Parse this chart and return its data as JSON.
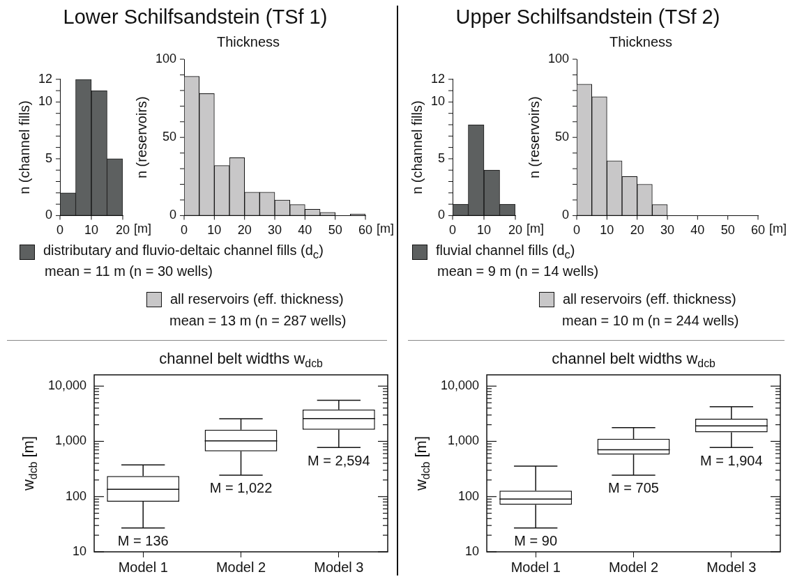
{
  "chart_data": [
    {
      "type": "histogram",
      "title": "Lower Schilfsandstein (TSf 1)",
      "ylabel": "n (channel fills)",
      "xlabel": "[m]",
      "bins": [
        0,
        5,
        10,
        15,
        20
      ],
      "series": [
        {
          "name": "distributary and fluvio-deltaic channel fills (d$_{c}$)",
          "color": "#5d6060",
          "values": [
            2,
            12,
            11,
            5
          ]
        }
      ],
      "xlim": [
        0,
        20
      ],
      "xticks": [
        0,
        10,
        20
      ],
      "ylim": [
        0,
        12
      ],
      "yticks": [
        0,
        {
          "value": 1,
          "label": null
        },
        {
          "value": 2,
          "label": null
        },
        {
          "value": 3,
          "label": null
        },
        {
          "value": 4,
          "label": null
        },
        5,
        {
          "value": 6,
          "label": null
        },
        {
          "value": 7,
          "label": null
        },
        {
          "value": 8,
          "label": null
        },
        {
          "value": 9,
          "label": null
        },
        10,
        {
          "value": 11,
          "label": null
        },
        12
      ],
      "legend": "bottom",
      "annotations": [
        "mean = 11 m (n = 30 wells)"
      ]
    },
    {
      "type": "histogram",
      "title": "Thickness",
      "ylabel": "n (reservoirs)",
      "xlabel": "[m]",
      "bins": [
        0,
        5,
        10,
        15,
        20,
        25,
        30,
        35,
        40,
        45,
        50,
        55,
        60
      ],
      "series": [
        {
          "name": "all reservoirs (eff. thickness)",
          "color": "#c8c7c8",
          "values": [
            89,
            78,
            32,
            37,
            15,
            15,
            10,
            7,
            4,
            2,
            0,
            1
          ]
        }
      ],
      "xlim": [
        0,
        60
      ],
      "xticks": [
        0,
        10,
        20,
        30,
        40,
        50,
        60
      ],
      "ylim": [
        0,
        100
      ],
      "yticks": [
        0,
        {
          "value": 10,
          "label": null
        },
        {
          "value": 20,
          "label": null
        },
        {
          "value": 30,
          "label": null
        },
        {
          "value": 40,
          "label": null
        },
        50,
        {
          "value": 60,
          "label": null
        },
        {
          "value": 70,
          "label": null
        },
        {
          "value": 80,
          "label": null
        },
        {
          "value": 90,
          "label": null
        },
        100
      ],
      "legend": "bottom",
      "annotations": [
        "mean = 13 m (n = 287 wells)"
      ]
    },
    {
      "type": "box",
      "title": "channel belt widths w$_{dcb}$",
      "ylabel": "w$_{dcb}$ [m]",
      "categories": [
        "Model 1",
        "Model 2",
        "Model 3"
      ],
      "boxes": [
        {
          "low": 27,
          "q1": 81,
          "median": 136,
          "q3": 236,
          "high": 374
        },
        {
          "low": 245,
          "q1": 662,
          "median": 1022,
          "q3": 1625,
          "high": 2560
        },
        {
          "low": 776,
          "q1": 1625,
          "median": 2594,
          "q3": 3785,
          "high": 5530
        }
      ],
      "log": true,
      "ylim": [
        10,
        16000
      ],
      "yticks": [
        10,
        {
          "value": 20,
          "label": null
        },
        {
          "value": 30,
          "label": null
        },
        {
          "value": 40,
          "label": null
        },
        {
          "value": 50,
          "label": null
        },
        {
          "value": 60,
          "label": null
        },
        {
          "value": 70,
          "label": null
        },
        {
          "value": 80,
          "label": null
        },
        {
          "value": 90,
          "label": null
        },
        100,
        {
          "value": 200,
          "label": null
        },
        {
          "value": 300,
          "label": null
        },
        {
          "value": 400,
          "label": null
        },
        {
          "value": 500,
          "label": null
        },
        {
          "value": 600,
          "label": null
        },
        {
          "value": 700,
          "label": null
        },
        {
          "value": 800,
          "label": null
        },
        {
          "value": 900,
          "label": null
        },
        {
          "value": 1000,
          "label": "1,000"
        },
        {
          "value": 2000,
          "label": null
        },
        {
          "value": 3000,
          "label": null
        },
        {
          "value": 4000,
          "label": null
        },
        {
          "value": 5000,
          "label": null
        },
        {
          "value": 6000,
          "label": null
        },
        {
          "value": 7000,
          "label": null
        },
        {
          "value": 8000,
          "label": null
        },
        {
          "value": 9000,
          "label": null
        },
        {
          "value": 10000,
          "label": "10,000"
        }
      ],
      "annotations": [
        "M = 136",
        "M = 1,022",
        "M = 2,594"
      ]
    },
    {
      "type": "histogram",
      "title": "Upper Schilfsandstein (TSf 2)",
      "ylabel": "n (channel fills)",
      "xlabel": "[m]",
      "bins": [
        0,
        5,
        10,
        15,
        20
      ],
      "series": [
        {
          "name": "fluvial channel fills (d$_{c}$)",
          "color": "#5d6060",
          "values": [
            1,
            8,
            4,
            1
          ]
        }
      ],
      "xlim": [
        0,
        20
      ],
      "xticks": [
        0,
        10,
        20
      ],
      "ylim": [
        0,
        12
      ],
      "yticks": [
        0,
        {
          "value": 1,
          "label": null
        },
        {
          "value": 2,
          "label": null
        },
        {
          "value": 3,
          "label": null
        },
        {
          "value": 4,
          "label": null
        },
        5,
        {
          "value": 6,
          "label": null
        },
        {
          "value": 7,
          "label": null
        },
        {
          "value": 8,
          "label": null
        },
        {
          "value": 9,
          "label": null
        },
        10,
        {
          "value": 11,
          "label": null
        },
        12
      ],
      "legend": "bottom",
      "annotations": [
        "mean = 9 m (n = 14 wells)"
      ]
    },
    {
      "type": "histogram",
      "title": "Thickness",
      "ylabel": "n (reservoirs)",
      "xlabel": "[m]",
      "bins": [
        0,
        5,
        10,
        15,
        20,
        25,
        30
      ],
      "series": [
        {
          "name": "all reservoirs (eff. thickness)",
          "color": "#c8c7c8",
          "values": [
            84,
            76,
            35,
            25,
            20,
            7
          ]
        }
      ],
      "xlim": [
        0,
        60
      ],
      "xticks": [
        0,
        10,
        20,
        30,
        40,
        50,
        60
      ],
      "ylim": [
        0,
        100
      ],
      "yticks": [
        0,
        {
          "value": 10,
          "label": null
        },
        {
          "value": 20,
          "label": null
        },
        {
          "value": 30,
          "label": null
        },
        {
          "value": 40,
          "label": null
        },
        50,
        {
          "value": 60,
          "label": null
        },
        {
          "value": 70,
          "label": null
        },
        {
          "value": 80,
          "label": null
        },
        {
          "value": 90,
          "label": null
        },
        100
      ],
      "legend": "bottom",
      "annotations": [
        "mean = 10 m (n = 244 wells)"
      ]
    },
    {
      "type": "box",
      "title": "channel belt widths w$_{dcb}$",
      "ylabel": "w$_{dcb}$ [m]",
      "categories": [
        "Model 1",
        "Model 2",
        "Model 3"
      ],
      "boxes": [
        {
          "low": 27,
          "q1": 71,
          "median": 90,
          "q3": 128,
          "high": 355
        },
        {
          "low": 245,
          "q1": 577,
          "median": 705,
          "q3": 1110,
          "high": 1770
        },
        {
          "low": 776,
          "q1": 1462,
          "median": 1904,
          "q3": 2560,
          "high": 4250
        }
      ],
      "log": true,
      "ylim": [
        10,
        16000
      ],
      "yticks": [
        10,
        {
          "value": 20,
          "label": null
        },
        {
          "value": 30,
          "label": null
        },
        {
          "value": 40,
          "label": null
        },
        {
          "value": 50,
          "label": null
        },
        {
          "value": 60,
          "label": null
        },
        {
          "value": 70,
          "label": null
        },
        {
          "value": 80,
          "label": null
        },
        {
          "value": 90,
          "label": null
        },
        100,
        {
          "value": 200,
          "label": null
        },
        {
          "value": 300,
          "label": null
        },
        {
          "value": 400,
          "label": null
        },
        {
          "value": 500,
          "label": null
        },
        {
          "value": 600,
          "label": null
        },
        {
          "value": 700,
          "label": null
        },
        {
          "value": 800,
          "label": null
        },
        {
          "value": 900,
          "label": null
        },
        {
          "value": 1000,
          "label": "1,000"
        },
        {
          "value": 2000,
          "label": null
        },
        {
          "value": 3000,
          "label": null
        },
        {
          "value": 4000,
          "label": null
        },
        {
          "value": 5000,
          "label": null
        },
        {
          "value": 6000,
          "label": null
        },
        {
          "value": 7000,
          "label": null
        },
        {
          "value": 8000,
          "label": null
        },
        {
          "value": 9000,
          "label": null
        },
        {
          "value": 10000,
          "label": "10,000"
        }
      ],
      "annotations": [
        "M = 90",
        "M = 705",
        "M = 1,904"
      ]
    }
  ]
}
